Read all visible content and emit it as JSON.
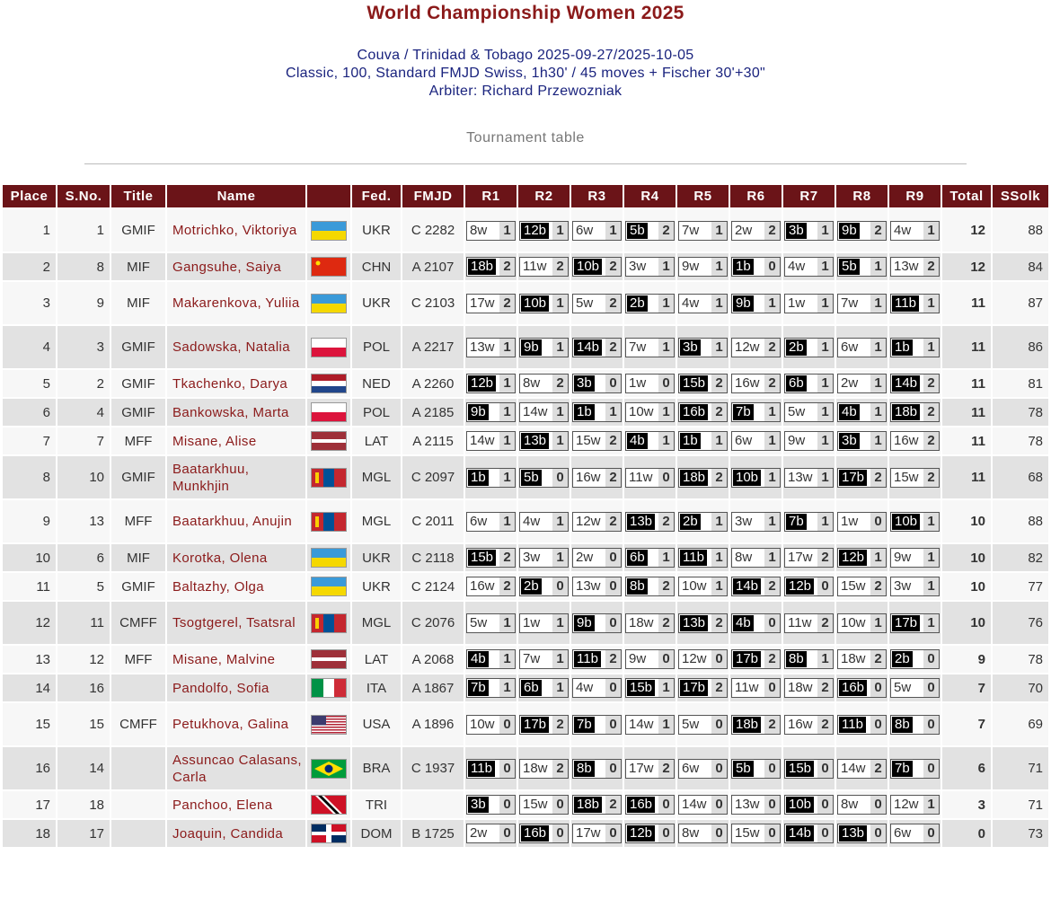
{
  "header": {
    "title": "World Championship Women 2025",
    "location": "Couva / Trinidad & Tobago 2025-09-27/2025-10-05",
    "format": "Classic, 100, Standard FMJD Swiss, 1h30' / 45 moves + Fischer 30'+30\"",
    "arbiter": "Arbiter: Richard Przewozniak",
    "subtitle": "Tournament table"
  },
  "columns": [
    "Place",
    "S.No.",
    "Title",
    "Name",
    "",
    "Fed.",
    "FMJD",
    "R1",
    "R2",
    "R3",
    "R4",
    "R5",
    "R6",
    "R7",
    "R8",
    "R9",
    "Total",
    "SSolk"
  ],
  "rows": [
    {
      "place": "1",
      "sno": "1",
      "title": "GMIF",
      "name": "Motrichko, Viktoriya",
      "flag": "ukraine-flag",
      "fed": "UKR",
      "fmjd": "C 2282",
      "rounds": [
        "8w 1",
        "12b 1",
        "6w 1",
        "5b 2",
        "7w 1",
        "2w 2",
        "3b 1",
        "9b 2",
        "4w 1"
      ],
      "total": "12",
      "ssolk": "88"
    },
    {
      "place": "2",
      "sno": "8",
      "title": "MIF",
      "name": "Gangsuhe, Saiya",
      "flag": "china-flag",
      "fed": "CHN",
      "fmjd": "A 2107",
      "rounds": [
        "18b 2",
        "11w 2",
        "10b 2",
        "3w 1",
        "9w 1",
        "1b 0",
        "4w 1",
        "5b 1",
        "13w 2"
      ],
      "total": "12",
      "ssolk": "84"
    },
    {
      "place": "3",
      "sno": "9",
      "title": "MIF",
      "name": "Makarenkova, Yuliia",
      "flag": "ukraine-flag",
      "fed": "UKR",
      "fmjd": "C 2103",
      "rounds": [
        "17w 2",
        "10b 1",
        "5w 2",
        "2b 1",
        "4w 1",
        "9b 1",
        "1w 1",
        "7w 1",
        "11b 1"
      ],
      "total": "11",
      "ssolk": "87"
    },
    {
      "place": "4",
      "sno": "3",
      "title": "GMIF",
      "name": "Sadowska, Natalia",
      "flag": "poland-flag",
      "fed": "POL",
      "fmjd": "A 2217",
      "rounds": [
        "13w 1",
        "9b 1",
        "14b 2",
        "7w 1",
        "3b 1",
        "12w 2",
        "2b 1",
        "6w 1",
        "1b 1"
      ],
      "total": "11",
      "ssolk": "86"
    },
    {
      "place": "5",
      "sno": "2",
      "title": "GMIF",
      "name": "Tkachenko, Darya",
      "flag": "netherlands-flag",
      "fed": "NED",
      "fmjd": "A 2260",
      "rounds": [
        "12b 1",
        "8w 2",
        "3b 0",
        "1w 0",
        "15b 2",
        "16w 2",
        "6b 1",
        "2w 1",
        "14b 2"
      ],
      "total": "11",
      "ssolk": "81"
    },
    {
      "place": "6",
      "sno": "4",
      "title": "GMIF",
      "name": "Bankowska, Marta",
      "flag": "poland-flag",
      "fed": "POL",
      "fmjd": "A 2185",
      "rounds": [
        "9b 1",
        "14w 1",
        "1b 1",
        "10w 1",
        "16b 2",
        "7b 1",
        "5w 1",
        "4b 1",
        "18b 2"
      ],
      "total": "11",
      "ssolk": "78"
    },
    {
      "place": "7",
      "sno": "7",
      "title": "MFF",
      "name": "Misane, Alise",
      "flag": "latvia-flag",
      "fed": "LAT",
      "fmjd": "A 2115",
      "rounds": [
        "14w 1",
        "13b 1",
        "15w 2",
        "4b 1",
        "1b 1",
        "6w 1",
        "9w 1",
        "3b 1",
        "16w 2"
      ],
      "total": "11",
      "ssolk": "78"
    },
    {
      "place": "8",
      "sno": "10",
      "title": "GMIF",
      "name": "Baatarkhuu, Munkhjin",
      "flag": "mongolia-flag",
      "fed": "MGL",
      "fmjd": "C 2097",
      "rounds": [
        "1b 1",
        "5b 0",
        "16w 2",
        "11w 0",
        "18b 2",
        "10b 1",
        "13w 1",
        "17b 2",
        "15w 2"
      ],
      "total": "11",
      "ssolk": "68"
    },
    {
      "place": "9",
      "sno": "13",
      "title": "MFF",
      "name": "Baatarkhuu, Anujin",
      "flag": "mongolia-flag",
      "fed": "MGL",
      "fmjd": "C 2011",
      "rounds": [
        "6w 1",
        "4w 1",
        "12w 2",
        "13b 2",
        "2b 1",
        "3w 1",
        "7b 1",
        "1w 0",
        "10b 1"
      ],
      "total": "10",
      "ssolk": "88"
    },
    {
      "place": "10",
      "sno": "6",
      "title": "MIF",
      "name": "Korotka, Olena",
      "flag": "ukraine-flag",
      "fed": "UKR",
      "fmjd": "C 2118",
      "rounds": [
        "15b 2",
        "3w 1",
        "2w 0",
        "6b 1",
        "11b 1",
        "8w 1",
        "17w 2",
        "12b 1",
        "9w 1"
      ],
      "total": "10",
      "ssolk": "82"
    },
    {
      "place": "11",
      "sno": "5",
      "title": "GMIF",
      "name": "Baltazhy, Olga",
      "flag": "ukraine-flag",
      "fed": "UKR",
      "fmjd": "C 2124",
      "rounds": [
        "16w 2",
        "2b 0",
        "13w 0",
        "8b 2",
        "10w 1",
        "14b 2",
        "12b 0",
        "15w 2",
        "3w 1"
      ],
      "total": "10",
      "ssolk": "77"
    },
    {
      "place": "12",
      "sno": "11",
      "title": "CMFF",
      "name": "Tsogtgerel, Tsatsral",
      "flag": "mongolia-flag",
      "fed": "MGL",
      "fmjd": "C 2076",
      "rounds": [
        "5w 1",
        "1w 1",
        "9b 0",
        "18w 2",
        "13b 2",
        "4b 0",
        "11w 2",
        "10w 1",
        "17b 1"
      ],
      "total": "10",
      "ssolk": "76"
    },
    {
      "place": "13",
      "sno": "12",
      "title": "MFF",
      "name": "Misane, Malvine",
      "flag": "latvia-flag",
      "fed": "LAT",
      "fmjd": "A 2068",
      "rounds": [
        "4b 1",
        "7w 1",
        "11b 2",
        "9w 0",
        "12w 0",
        "17b 2",
        "8b 1",
        "18w 2",
        "2b 0"
      ],
      "total": "9",
      "ssolk": "78"
    },
    {
      "place": "14",
      "sno": "16",
      "title": "",
      "name": "Pandolfo, Sofia",
      "flag": "italy-flag",
      "fed": "ITA",
      "fmjd": "A 1867",
      "rounds": [
        "7b 1",
        "6b 1",
        "4w 0",
        "15b 1",
        "17b 2",
        "11w 0",
        "18w 2",
        "16b 0",
        "5w 0"
      ],
      "total": "7",
      "ssolk": "70"
    },
    {
      "place": "15",
      "sno": "15",
      "title": "CMFF",
      "name": "Petukhova, Galina",
      "flag": "usa-flag",
      "fed": "USA",
      "fmjd": "A 1896",
      "rounds": [
        "10w 0",
        "17b 2",
        "7b 0",
        "14w 1",
        "5w 0",
        "18b 2",
        "16w 2",
        "11b 0",
        "8b 0"
      ],
      "total": "7",
      "ssolk": "69"
    },
    {
      "place": "16",
      "sno": "14",
      "title": "",
      "name": "Assuncao Calasans, Carla",
      "flag": "brazil-flag",
      "fed": "BRA",
      "fmjd": "C 1937",
      "rounds": [
        "11b 0",
        "18w 2",
        "8b 0",
        "17w 2",
        "6w 0",
        "5b 0",
        "15b 0",
        "14w 2",
        "7b 0"
      ],
      "total": "6",
      "ssolk": "71"
    },
    {
      "place": "17",
      "sno": "18",
      "title": "",
      "name": "Panchoo, Elena",
      "flag": "trinidad-flag",
      "fed": "TRI",
      "fmjd": "",
      "rounds": [
        "3b 0",
        "15w 0",
        "18b 2",
        "16b 0",
        "14w 0",
        "13w 0",
        "10b 0",
        "8w 0",
        "12w 1"
      ],
      "total": "3",
      "ssolk": "71"
    },
    {
      "place": "18",
      "sno": "17",
      "title": "",
      "name": "Joaquin, Candida",
      "flag": "dominican-flag",
      "fed": "DOM",
      "fmjd": "B 1725",
      "rounds": [
        "2w 0",
        "16b 0",
        "17w 0",
        "12b 0",
        "8w 0",
        "15w 0",
        "14b 0",
        "13b 0",
        "6w 0"
      ],
      "total": "0",
      "ssolk": "73"
    }
  ],
  "colors": {
    "title": "#8b1a1a",
    "info": "#1a237e",
    "header_bg": "#6b1418",
    "name": "#8b1a1a"
  }
}
